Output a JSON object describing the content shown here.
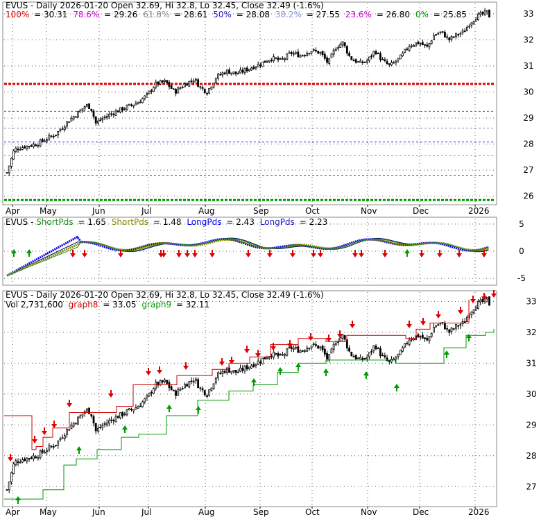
{
  "colors": {
    "up": "#000000",
    "grid": "#555555",
    "fib_red": "#dd0000",
    "fib_magenta": "#cc00cc",
    "fib_green": "#009900",
    "fib_gray": "#888888",
    "fib_blue": "#2222cc",
    "fib_lightblue": "#8899cc",
    "sp_green": "#228b22",
    "sp_olive": "#888800",
    "lp_blue": "#0000ee",
    "lp_navy": "#000066",
    "arrow_red": "#dd0000",
    "arrow_green": "#009900",
    "stop_red": "#cc0000",
    "stop_green": "#009900"
  },
  "panels": {
    "price": {
      "title": "EVUS - Daily 2026-01-20 Open 32.69, Hi 32.8, Lo 32.45, Close 32.49 (-1.6%)",
      "fib_legend": [
        {
          "label": "100%",
          "value": "= 30.31",
          "color": "#dd0000"
        },
        {
          "label": "78.6%",
          "value": "= 29.26",
          "color": "#cc00cc"
        },
        {
          "label": "61.8%",
          "value": "= 28.61",
          "color": "#888888"
        },
        {
          "label": "50%",
          "value": "= 28.08",
          "color": "#2222cc"
        },
        {
          "label": "38.2%",
          "value": "= 27.55",
          "color": "#8899cc"
        },
        {
          "label": "23.6%",
          "value": "= 26.80",
          "color": "#cc00cc"
        },
        {
          "label": "0%",
          "value": "= 25.85",
          "color": "#009900"
        }
      ]
    },
    "pds": {
      "title": "EVUS",
      "legend": [
        {
          "label": "ShortPds",
          "value": "= 1.65",
          "color": "#228b22"
        },
        {
          "label": "ShortPds",
          "value": "= 1.48",
          "color": "#888800"
        },
        {
          "label": "LongPds",
          "value": "= 2.43",
          "color": "#0000ee"
        },
        {
          "label": "LongPds",
          "value": "= 2.23",
          "color": "#2222cc"
        }
      ]
    },
    "lower": {
      "title": "EVUS - Daily 2026-01-20 Open 32.69, Hi 32.8, Lo 32.45, Close 32.49 (-1.6%)",
      "vol": "Vol 2,731,600",
      "legend": [
        {
          "label": "graph8",
          "value": "= 33.05",
          "color": "#cc0000"
        },
        {
          "label": "graph9",
          "value": "= 32.11",
          "color": "#009900"
        }
      ]
    }
  },
  "chart_data": [
    {
      "type": "candlestick",
      "title": "EVUS - Daily 2026-01-20 Open 32.69, Hi 32.8, Lo 32.45, Close 32.49 (-1.6%)",
      "x_labels": [
        "Apr",
        "May",
        "Jun",
        "Jul",
        "Aug",
        "Sep",
        "Oct",
        "Nov",
        "Dec",
        "2026"
      ],
      "y_ticks": [
        26,
        27,
        28,
        29,
        30,
        31,
        32,
        33
      ],
      "ylim": [
        25.75,
        33.4
      ],
      "fib_levels": [
        30.31,
        29.26,
        28.61,
        28.08,
        27.55,
        26.8,
        25.85
      ],
      "price_path": [
        [
          0,
          26.9
        ],
        [
          6,
          27.8
        ],
        [
          14,
          27.9
        ],
        [
          24,
          28.0
        ],
        [
          32,
          28.2
        ],
        [
          40,
          28.4
        ],
        [
          50,
          28.9
        ],
        [
          60,
          29.3
        ],
        [
          64,
          29.5
        ],
        [
          68,
          29.4
        ],
        [
          72,
          28.8
        ],
        [
          78,
          29.0
        ],
        [
          86,
          29.2
        ],
        [
          96,
          29.4
        ],
        [
          106,
          29.6
        ],
        [
          114,
          29.9
        ],
        [
          120,
          30.3
        ],
        [
          128,
          30.4
        ],
        [
          136,
          30.0
        ],
        [
          144,
          30.3
        ],
        [
          152,
          30.5
        ],
        [
          156,
          30.2
        ],
        [
          162,
          30.0
        ],
        [
          170,
          30.6
        ],
        [
          178,
          30.8
        ],
        [
          186,
          30.7
        ],
        [
          196,
          30.9
        ],
        [
          206,
          31.1
        ],
        [
          214,
          31.3
        ],
        [
          222,
          31.2
        ],
        [
          230,
          31.5
        ],
        [
          238,
          31.4
        ],
        [
          246,
          31.6
        ],
        [
          254,
          31.5
        ],
        [
          260,
          31.1
        ],
        [
          266,
          31.7
        ],
        [
          272,
          31.9
        ],
        [
          278,
          31.3
        ],
        [
          286,
          31.1
        ],
        [
          292,
          31.2
        ],
        [
          298,
          31.6
        ],
        [
          304,
          31.2
        ],
        [
          310,
          31.0
        ],
        [
          318,
          31.3
        ],
        [
          326,
          31.8
        ],
        [
          334,
          31.9
        ],
        [
          340,
          31.7
        ],
        [
          346,
          32.2
        ],
        [
          352,
          32.3
        ],
        [
          358,
          32.0
        ],
        [
          364,
          32.2
        ],
        [
          370,
          32.3
        ],
        [
          374,
          32.6
        ],
        [
          380,
          32.9
        ],
        [
          386,
          33.0
        ],
        [
          390,
          33.1
        ],
        [
          392,
          32.49
        ]
      ]
    },
    {
      "type": "line",
      "title": "EVUS",
      "ylim": [
        -6,
        6
      ],
      "y_ticks": [
        -5,
        0,
        5
      ],
      "series": [
        {
          "name": "ShortPds",
          "values": [
            1.65
          ]
        },
        {
          "name": "ShortPds",
          "values": [
            1.48
          ]
        },
        {
          "name": "LongPds",
          "values": [
            2.43
          ]
        },
        {
          "name": "LongPds",
          "values": [
            2.23
          ]
        }
      ]
    },
    {
      "type": "candlestick",
      "title": "EVUS - Daily 2026-01-20 Open 32.69, Hi 32.8, Lo 32.45, Close 32.49 (-1.6%)",
      "x_labels": [
        "Apr",
        "May",
        "Jun",
        "Jul",
        "Aug",
        "Sep",
        "Oct",
        "Nov",
        "Dec",
        "2026"
      ],
      "y_ticks": [
        27,
        28,
        29,
        30,
        31,
        32,
        33
      ],
      "ylim": [
        26.4,
        33.3
      ],
      "series": [
        {
          "name": "graph8",
          "values": [
            33.05
          ]
        },
        {
          "name": "graph9",
          "values": [
            32.11
          ]
        }
      ]
    }
  ]
}
